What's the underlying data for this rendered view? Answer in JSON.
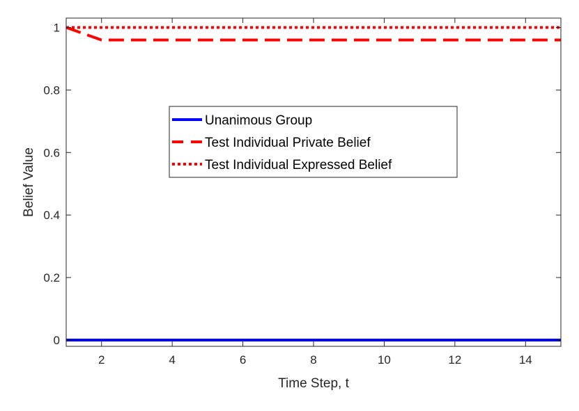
{
  "chart_data": {
    "type": "line",
    "title": "",
    "xlabel": "Time Step, t",
    "ylabel": "Belief Value",
    "xlim": [
      1,
      15
    ],
    "ylim": [
      -0.02,
      1.03
    ],
    "xticks": [
      2,
      4,
      6,
      8,
      10,
      12,
      14
    ],
    "yticks": [
      0,
      0.2,
      0.4,
      0.6,
      0.8,
      1
    ],
    "ytick_labels": [
      "0",
      "0.2",
      "0.4",
      "0.6",
      "0.8",
      "1"
    ],
    "grid": false,
    "legend_position": "center",
    "series": [
      {
        "name": "Unanimous Group",
        "style": "solid",
        "color": "#0000ff",
        "x": [
          1,
          2,
          3,
          4,
          5,
          6,
          7,
          8,
          9,
          10,
          11,
          12,
          13,
          14,
          15
        ],
        "y": [
          0,
          0,
          0,
          0,
          0,
          0,
          0,
          0,
          0,
          0,
          0,
          0,
          0,
          0,
          0
        ]
      },
      {
        "name": "Test Individual Private Belief",
        "style": "dashed",
        "color": "#ff0000",
        "x": [
          1,
          2,
          3,
          4,
          5,
          6,
          7,
          8,
          9,
          10,
          11,
          12,
          13,
          14,
          15
        ],
        "y": [
          1,
          0.96,
          0.96,
          0.96,
          0.96,
          0.96,
          0.96,
          0.96,
          0.96,
          0.96,
          0.96,
          0.96,
          0.96,
          0.96,
          0.96
        ]
      },
      {
        "name": "Test Individual Expressed Belief",
        "style": "dotted",
        "color": "#ff0000",
        "x": [
          1,
          2,
          3,
          4,
          5,
          6,
          7,
          8,
          9,
          10,
          11,
          12,
          13,
          14,
          15
        ],
        "y": [
          1,
          1,
          1,
          1,
          1,
          1,
          1,
          1,
          1,
          1,
          1,
          1,
          1,
          1,
          1
        ]
      }
    ]
  }
}
